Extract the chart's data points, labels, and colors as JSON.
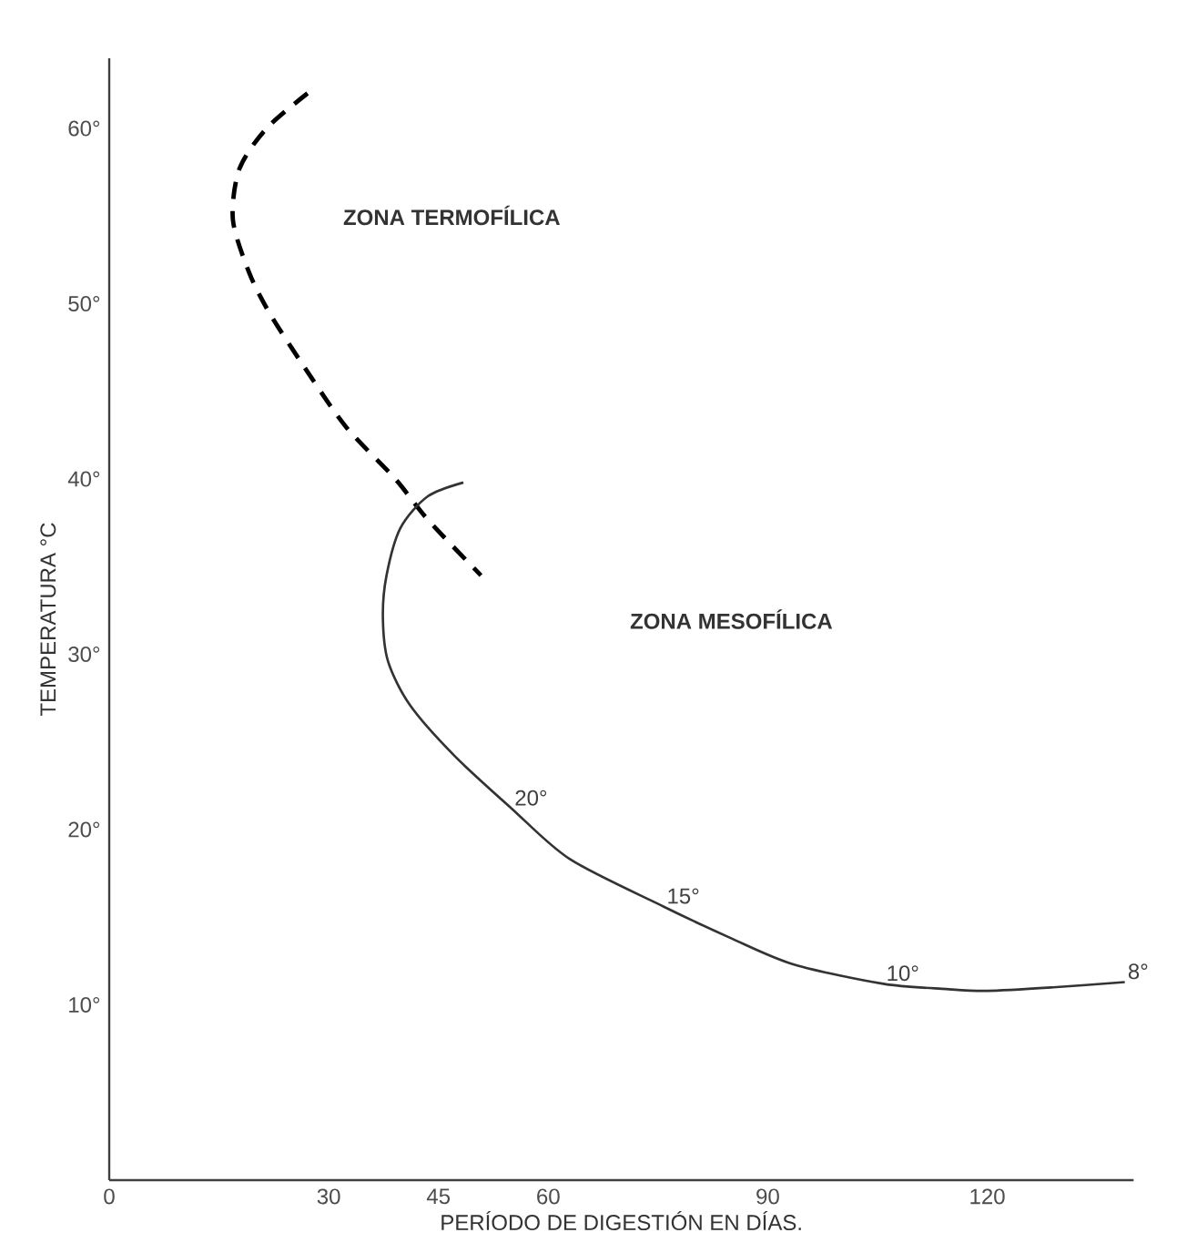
{
  "chart_data": {
    "type": "line",
    "xlabel": "PERÍODO DE DIGESTIÓN EN DÍAS.",
    "ylabel": "TEMPERATURA °C",
    "xlim": [
      0,
      140
    ],
    "ylim": [
      0,
      64
    ],
    "xticks": [
      0,
      30,
      45,
      60,
      90,
      120
    ],
    "yticks": [
      {
        "value": 10,
        "label": "10°"
      },
      {
        "value": 20,
        "label": "20°"
      },
      {
        "value": 30,
        "label": "30°"
      },
      {
        "value": 40,
        "label": "40°"
      },
      {
        "value": 50,
        "label": "50°"
      },
      {
        "value": 60,
        "label": "60°"
      }
    ],
    "grid": false,
    "marker": "none",
    "series": [
      {
        "color": "#000000",
        "line_style": "dashed",
        "x": [
          27.1,
          21.5,
          17.8,
          16.9,
          19.1,
          22.0,
          27.6,
          32.5,
          39.1,
          43.5,
          50.8
        ],
        "values": [
          62.0,
          60.0,
          57.7,
          54.8,
          51.8,
          49.4,
          45.8,
          42.9,
          40.0,
          37.7,
          34.5
        ]
      },
      {
        "color": "#333333",
        "line_style": "solid",
        "x": [
          48.4,
          43.5,
          39.8,
          37.9,
          37.4,
          38.1,
          41.1,
          47.2,
          55.0,
          63.0,
          75.8,
          85.0,
          93.6,
          105.8,
          114.4,
          120.0,
          129.0,
          138.8
        ],
        "values": [
          39.8,
          39.0,
          37.2,
          34.5,
          32.1,
          29.6,
          27.1,
          24.2,
          21.2,
          18.3,
          15.6,
          13.8,
          12.3,
          11.2,
          10.9,
          10.8,
          11.0,
          11.3
        ]
      }
    ],
    "annotations": [
      "ZONA TERMOFÍLICA",
      "ZONA MESOFÍLICA",
      {
        "text": "20°",
        "x": 55.0,
        "y": 21.2
      },
      {
        "text": "15°",
        "x": 75.8,
        "y": 15.6
      },
      {
        "text": "10°",
        "x": 105.8,
        "y": 11.2
      },
      {
        "text": "8°",
        "x": 138.8,
        "y": 11.3
      }
    ]
  }
}
